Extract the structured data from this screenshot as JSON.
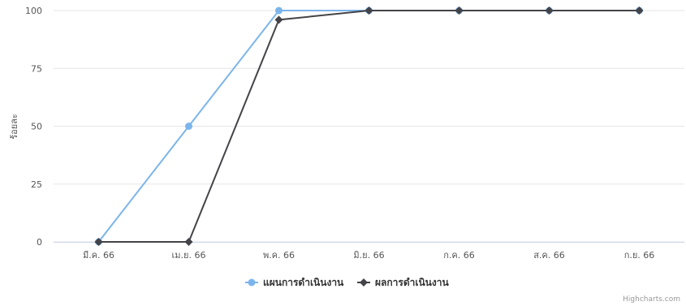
{
  "chart_data": {
    "type": "line",
    "title": "",
    "xlabel": "",
    "ylabel": "ร้อยละ",
    "ylim": [
      0,
      100
    ],
    "yticks": [
      0,
      25,
      50,
      75,
      100
    ],
    "categories": [
      "มี.ค. 66",
      "เม.ย. 66",
      "พ.ค. 66",
      "มิ.ย. 66",
      "ก.ค. 66",
      "ส.ค. 66",
      "ก.ย. 66"
    ],
    "series": [
      {
        "name": "แผนการดำเนินงาน",
        "values": [
          0,
          50,
          100,
          100,
          100,
          100,
          100
        ],
        "color": "#7cb5ec",
        "marker": "circle"
      },
      {
        "name": "ผลการดำเนินงาน",
        "values": [
          0,
          0,
          96,
          100,
          100,
          100,
          100
        ],
        "color": "#434348",
        "marker": "diamond"
      }
    ],
    "grid": true,
    "legend_position": "bottom-center"
  },
  "credits": "Highcharts.com"
}
